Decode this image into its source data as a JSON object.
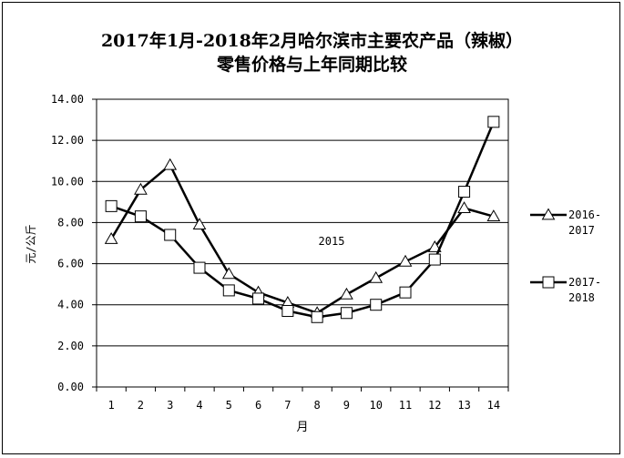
{
  "chart_data": {
    "type": "line",
    "title": "2017年1月-2018年2月哈尔滨市主要农产品（辣椒）",
    "subtitle": "零售价格与上年同期比较",
    "xlabel": "月",
    "ylabel": "元/公斤",
    "annotation": "2015",
    "x": [
      1,
      2,
      3,
      4,
      5,
      6,
      7,
      8,
      9,
      10,
      11,
      12,
      13,
      14
    ],
    "ylim": [
      0,
      14
    ],
    "yticks": [
      "0.00",
      "2.00",
      "4.00",
      "6.00",
      "8.00",
      "10.00",
      "12.00",
      "14.00"
    ],
    "grid": true,
    "legend_position": "right",
    "series": [
      {
        "name": "2016-2017",
        "legend_lines": [
          "2016-",
          "2017"
        ],
        "marker": "triangle",
        "color": "#000000",
        "values": [
          7.2,
          9.6,
          10.8,
          7.9,
          5.5,
          4.6,
          4.1,
          3.6,
          4.5,
          5.3,
          6.1,
          6.8,
          8.7,
          8.3
        ]
      },
      {
        "name": "2017-2018",
        "legend_lines": [
          "2017-",
          "2018"
        ],
        "marker": "square",
        "color": "#000000",
        "values": [
          8.8,
          8.3,
          7.4,
          5.8,
          4.7,
          4.3,
          3.7,
          3.4,
          3.6,
          4.0,
          4.6,
          6.2,
          9.5,
          12.9
        ]
      }
    ]
  }
}
